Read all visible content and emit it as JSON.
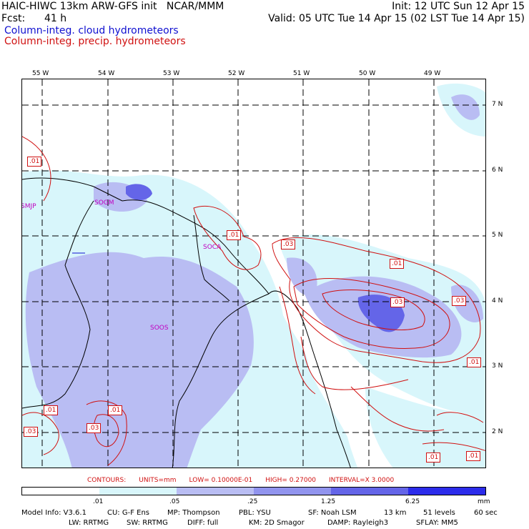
{
  "header": {
    "model_line": "HAIC-HIWC 13km ARW-GFS init   NCAR/MMM",
    "fcst_label": "Fcst:",
    "fcst_value": "41 h",
    "init": "Init: 12 UTC Sun 12 Apr 15",
    "valid": "Valid: 05 UTC Tue 14 Apr 15 (02 LST Tue 14 Apr 15)",
    "legend_cloud": "Column-integ. cloud hydrometeors",
    "legend_precip": "Column-integ. precip. hydrometeors"
  },
  "colors": {
    "cloud_fill": [
      "#ffffff",
      "#d8f6fb",
      "#b9bdf3",
      "#9194ee",
      "#6465e8",
      "#2c2ceb"
    ],
    "precip_contour": "#d01010",
    "label_purple": "#c000c0",
    "label_blue": "#1010d0",
    "label_red": "#d01010"
  },
  "map": {
    "lon_ticks": [
      "55 W",
      "54 W",
      "53 W",
      "52 W",
      "51 W",
      "50 W",
      "49 W"
    ],
    "lat_ticks": [
      "7 N",
      "6 N",
      "5 N",
      "4 N",
      "3 N",
      "2 N"
    ],
    "stations": [
      "SMJP",
      "SOGM",
      "SOCA",
      "SOOS"
    ],
    "contour_labels": [
      ".01",
      ".01",
      ".03",
      ".01",
      ".03",
      ".03",
      ".01",
      ".01",
      ".03",
      ".01",
      ".03",
      ".01",
      ".01"
    ]
  },
  "contours_info": {
    "title": "CONTOURS:",
    "units": "UNITS=mm",
    "low": "LOW= 0.10000E-01",
    "high": "HIGH= 0.27000",
    "interval": "INTERVAL=X  3.0000"
  },
  "scale": {
    "labels": [
      ".01",
      ".05",
      ".25",
      "1.25",
      "6.25"
    ],
    "unit": "mm"
  },
  "footer": {
    "line1": [
      "Model Info: V3.6.1",
      "CU: G-F Ens",
      "MP: Thompson",
      "PBL: YSU",
      "SF: Noah LSM",
      "13 km",
      "51 levels",
      "60 sec"
    ],
    "line2": [
      "LW: RRTMG",
      "SW: RRTMG",
      "DIFF: full",
      "KM: 2D Smagor",
      "DAMP: Rayleigh3",
      "SFLAY: MM5"
    ]
  }
}
